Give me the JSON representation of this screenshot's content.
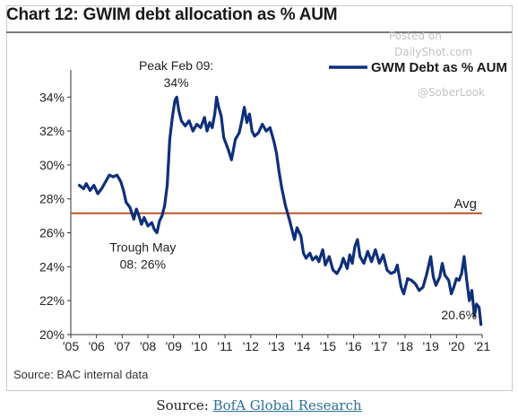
{
  "caption": {
    "prefix": "Source:",
    "link_text": "BofA Global Research"
  },
  "watermark": {
    "line1": "Posted on",
    "line2": "DailyShot.com",
    "line3": "@SoberLook"
  },
  "chart_data": {
    "type": "line",
    "title": "Chart 12: GWIM debt allocation as % AUM",
    "source": "Source: BAC internal data",
    "legend": {
      "label": "GWM Debt as % AUM",
      "placement": "top-right"
    },
    "series": [
      {
        "name": "GWM Debt as % AUM",
        "color": "#0e2f7a",
        "points": [
          [
            2005.33,
            28.8
          ],
          [
            2005.5,
            28.6
          ],
          [
            2005.6,
            28.9
          ],
          [
            2005.75,
            28.5
          ],
          [
            2005.9,
            28.8
          ],
          [
            2006.05,
            28.3
          ],
          [
            2006.2,
            28.6
          ],
          [
            2006.35,
            29.0
          ],
          [
            2006.5,
            29.4
          ],
          [
            2006.65,
            29.3
          ],
          [
            2006.8,
            29.4
          ],
          [
            2006.95,
            29.0
          ],
          [
            2007.05,
            28.5
          ],
          [
            2007.15,
            27.8
          ],
          [
            2007.3,
            27.5
          ],
          [
            2007.45,
            26.8
          ],
          [
            2007.55,
            27.4
          ],
          [
            2007.65,
            27.0
          ],
          [
            2007.75,
            26.5
          ],
          [
            2007.85,
            26.9
          ],
          [
            2008.0,
            26.4
          ],
          [
            2008.15,
            26.6
          ],
          [
            2008.25,
            26.2
          ],
          [
            2008.35,
            26.0
          ],
          [
            2008.45,
            26.7
          ],
          [
            2008.55,
            27.0
          ],
          [
            2008.65,
            27.6
          ],
          [
            2008.75,
            28.8
          ],
          [
            2008.85,
            31.5
          ],
          [
            2008.95,
            32.8
          ],
          [
            2009.05,
            33.8
          ],
          [
            2009.12,
            34.0
          ],
          [
            2009.2,
            33.2
          ],
          [
            2009.3,
            32.6
          ],
          [
            2009.45,
            32.3
          ],
          [
            2009.6,
            32.6
          ],
          [
            2009.75,
            32.0
          ],
          [
            2009.9,
            32.4
          ],
          [
            2010.05,
            32.2
          ],
          [
            2010.2,
            32.8
          ],
          [
            2010.3,
            32.0
          ],
          [
            2010.4,
            32.5
          ],
          [
            2010.5,
            32.2
          ],
          [
            2010.6,
            33.0
          ],
          [
            2010.67,
            34.0
          ],
          [
            2010.75,
            33.4
          ],
          [
            2010.85,
            32.9
          ],
          [
            2010.95,
            31.6
          ],
          [
            2011.05,
            31.2
          ],
          [
            2011.15,
            30.8
          ],
          [
            2011.25,
            30.3
          ],
          [
            2011.4,
            31.5
          ],
          [
            2011.55,
            31.9
          ],
          [
            2011.65,
            32.6
          ],
          [
            2011.75,
            33.4
          ],
          [
            2011.85,
            32.5
          ],
          [
            2011.95,
            33.0
          ],
          [
            2012.05,
            32.0
          ],
          [
            2012.15,
            31.7
          ],
          [
            2012.3,
            31.9
          ],
          [
            2012.45,
            32.4
          ],
          [
            2012.6,
            32.0
          ],
          [
            2012.75,
            32.2
          ],
          [
            2012.9,
            31.4
          ],
          [
            2013.0,
            30.7
          ],
          [
            2013.1,
            29.6
          ],
          [
            2013.2,
            28.7
          ],
          [
            2013.35,
            27.6
          ],
          [
            2013.5,
            26.8
          ],
          [
            2013.6,
            26.2
          ],
          [
            2013.7,
            25.6
          ],
          [
            2013.8,
            26.3
          ],
          [
            2013.95,
            25.8
          ],
          [
            2014.05,
            24.8
          ],
          [
            2014.15,
            24.5
          ],
          [
            2014.3,
            24.8
          ],
          [
            2014.4,
            24.4
          ],
          [
            2014.55,
            24.6
          ],
          [
            2014.65,
            24.3
          ],
          [
            2014.8,
            25.0
          ],
          [
            2014.9,
            24.1
          ],
          [
            2015.05,
            24.6
          ],
          [
            2015.2,
            23.8
          ],
          [
            2015.35,
            23.6
          ],
          [
            2015.5,
            24.0
          ],
          [
            2015.6,
            24.5
          ],
          [
            2015.75,
            23.9
          ],
          [
            2015.85,
            24.7
          ],
          [
            2015.95,
            24.2
          ],
          [
            2016.05,
            25.2
          ],
          [
            2016.15,
            25.6
          ],
          [
            2016.25,
            24.6
          ],
          [
            2016.4,
            24.2
          ],
          [
            2016.55,
            24.9
          ],
          [
            2016.7,
            24.3
          ],
          [
            2016.85,
            25.0
          ],
          [
            2017.0,
            24.2
          ],
          [
            2017.15,
            24.7
          ],
          [
            2017.3,
            23.8
          ],
          [
            2017.45,
            23.6
          ],
          [
            2017.6,
            23.7
          ],
          [
            2017.7,
            24.1
          ],
          [
            2017.85,
            22.8
          ],
          [
            2017.95,
            22.4
          ],
          [
            2018.1,
            23.3
          ],
          [
            2018.25,
            23.2
          ],
          [
            2018.4,
            23.0
          ],
          [
            2018.55,
            22.6
          ],
          [
            2018.7,
            22.8
          ],
          [
            2018.85,
            23.6
          ],
          [
            2019.0,
            24.6
          ],
          [
            2019.1,
            23.4
          ],
          [
            2019.2,
            22.9
          ],
          [
            2019.35,
            23.4
          ],
          [
            2019.45,
            24.2
          ],
          [
            2019.55,
            23.5
          ],
          [
            2019.7,
            23.2
          ],
          [
            2019.8,
            22.4
          ],
          [
            2019.9,
            22.8
          ],
          [
            2020.0,
            23.3
          ],
          [
            2020.1,
            23.2
          ],
          [
            2020.2,
            23.6
          ],
          [
            2020.3,
            24.6
          ],
          [
            2020.4,
            23.2
          ],
          [
            2020.5,
            22.0
          ],
          [
            2020.6,
            22.6
          ],
          [
            2020.7,
            21.1
          ],
          [
            2020.78,
            21.8
          ],
          [
            2020.88,
            21.6
          ],
          [
            2020.95,
            20.6
          ]
        ]
      }
    ],
    "average": {
      "value": 27.15,
      "label": "Avg",
      "color": "#c0522a"
    },
    "annotations": [
      {
        "line1": "Peak Feb 09:",
        "line2": "34%",
        "x": 2009.1,
        "y": 35.6
      },
      {
        "line1": "Trough May",
        "line2": "08: 26%",
        "x": 2007.8,
        "y": 24.9
      },
      {
        "line1": "20.6%",
        "line2": "",
        "x": 2020.1,
        "y": 20.9
      }
    ],
    "x_ticks": [
      {
        "v": 2005,
        "label": "'05"
      },
      {
        "v": 2006,
        "label": "'06"
      },
      {
        "v": 2007,
        "label": "'07"
      },
      {
        "v": 2008,
        "label": "'08"
      },
      {
        "v": 2009,
        "label": "'09"
      },
      {
        "v": 2010,
        "label": "'10"
      },
      {
        "v": 2011,
        "label": "'11"
      },
      {
        "v": 2012,
        "label": "'12"
      },
      {
        "v": 2013,
        "label": "'13"
      },
      {
        "v": 2014,
        "label": "'14"
      },
      {
        "v": 2015,
        "label": "'15"
      },
      {
        "v": 2016,
        "label": "'16"
      },
      {
        "v": 2017,
        "label": "'17"
      },
      {
        "v": 2018,
        "label": "'18"
      },
      {
        "v": 2019,
        "label": "'19"
      },
      {
        "v": 2020,
        "label": "'20"
      },
      {
        "v": 2021,
        "label": "'21"
      }
    ],
    "y_ticks": [
      {
        "v": 20,
        "label": "20%"
      },
      {
        "v": 22,
        "label": "22%"
      },
      {
        "v": 24,
        "label": "24%"
      },
      {
        "v": 26,
        "label": "26%"
      },
      {
        "v": 28,
        "label": "28%"
      },
      {
        "v": 30,
        "label": "30%"
      },
      {
        "v": 32,
        "label": "32%"
      },
      {
        "v": 34,
        "label": "34%"
      }
    ],
    "xlim": [
      2005,
      2021
    ],
    "ylim": [
      20,
      35.6
    ],
    "grid": false
  }
}
